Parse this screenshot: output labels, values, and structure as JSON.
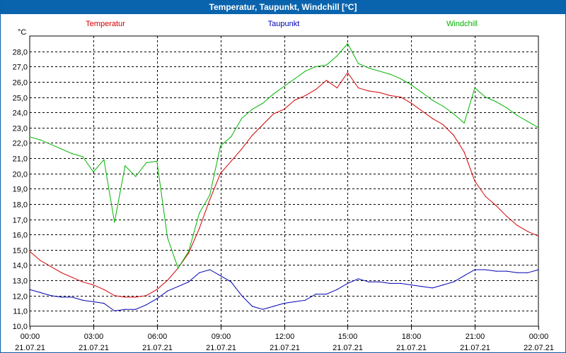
{
  "window": {
    "title": "Temperatur, Taupunkt, Windchill [°C]"
  },
  "chart_data": {
    "type": "line",
    "title": "Temperatur, Taupunkt, Windchill [°C]",
    "unit_label": "°C",
    "ylim": [
      10,
      29
    ],
    "y_ticks": [
      "11,0",
      "12,0",
      "13,0",
      "14,0",
      "15,0",
      "16,0",
      "17,0",
      "18,0",
      "19,0",
      "20,0",
      "21,0",
      "22,0",
      "23,0",
      "24,0",
      "25,0",
      "26,0",
      "27,0",
      "28,0"
    ],
    "x_range_hours": [
      0,
      24
    ],
    "x_ticks": [
      {
        "time": "00:00",
        "date": "21.07.21"
      },
      {
        "time": "03:00",
        "date": "21.07.21"
      },
      {
        "time": "06:00",
        "date": "21.07.21"
      },
      {
        "time": "09:00",
        "date": "21.07.21"
      },
      {
        "time": "12:00",
        "date": "21.07.21"
      },
      {
        "time": "15:00",
        "date": "21.07.21"
      },
      {
        "time": "18:00",
        "date": "21.07.21"
      },
      {
        "time": "21:00",
        "date": "21.07.21"
      },
      {
        "time": "00:00",
        "date": "22.07.21"
      }
    ],
    "x_hours": [
      0,
      0.5,
      1,
      1.5,
      2,
      2.5,
      3,
      3.5,
      4,
      4.5,
      5,
      5.5,
      6,
      6.5,
      7,
      7.5,
      8,
      8.5,
      9,
      9.5,
      10,
      10.5,
      11,
      11.5,
      12,
      12.5,
      13,
      13.5,
      14,
      14.5,
      15,
      15.5,
      16,
      16.5,
      17,
      17.5,
      18,
      18.5,
      19,
      19.5,
      20,
      20.5,
      21,
      21.5,
      22,
      22.5,
      23,
      23.5,
      24
    ],
    "series": [
      {
        "name": "Temperatur",
        "color": "#d40000",
        "values": [
          14.9,
          14.3,
          13.9,
          13.5,
          13.2,
          12.9,
          12.7,
          12.4,
          12.0,
          11.9,
          11.9,
          12.0,
          12.4,
          13.0,
          13.8,
          14.8,
          16.4,
          18.3,
          20.0,
          20.8,
          21.6,
          22.5,
          23.2,
          23.9,
          24.2,
          24.8,
          25.1,
          25.5,
          26.1,
          25.6,
          26.6,
          25.6,
          25.4,
          25.3,
          25.1,
          25.0,
          24.6,
          24.1,
          23.6,
          23.2,
          22.5,
          21.4,
          19.5,
          18.5,
          17.9,
          17.2,
          16.6,
          16.2,
          15.9
        ]
      },
      {
        "name": "Taupunkt",
        "color": "#0000b4",
        "values": [
          12.4,
          12.2,
          12.0,
          11.9,
          11.9,
          11.7,
          11.6,
          11.5,
          11.0,
          11.1,
          11.1,
          11.4,
          11.8,
          12.3,
          12.6,
          12.9,
          13.5,
          13.7,
          13.3,
          12.9,
          12.0,
          11.3,
          11.1,
          11.3,
          11.5,
          11.6,
          11.7,
          12.1,
          12.1,
          12.4,
          12.8,
          13.1,
          12.9,
          12.9,
          12.8,
          12.8,
          12.7,
          12.6,
          12.5,
          12.7,
          12.9,
          13.3,
          13.7,
          13.7,
          13.6,
          13.6,
          13.5,
          13.5,
          13.7
        ]
      },
      {
        "name": "Windchill",
        "color": "#00b400",
        "values": [
          22.4,
          22.2,
          21.9,
          21.6,
          21.3,
          21.1,
          20.1,
          20.9,
          16.8,
          20.5,
          19.8,
          20.7,
          20.8,
          15.8,
          13.8,
          14.9,
          17.4,
          18.6,
          21.8,
          22.4,
          23.6,
          24.2,
          24.6,
          25.2,
          25.7,
          26.2,
          26.7,
          27.0,
          27.1,
          27.7,
          28.5,
          27.2,
          26.9,
          26.7,
          26.5,
          26.2,
          25.8,
          25.3,
          24.8,
          24.4,
          23.9,
          23.3,
          25.6,
          25.0,
          24.7,
          24.3,
          23.8,
          23.4,
          23.0
        ]
      }
    ]
  }
}
